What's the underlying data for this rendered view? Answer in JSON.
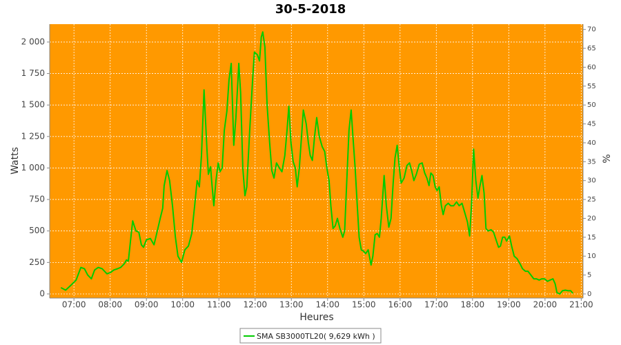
{
  "chart_data": {
    "type": "line",
    "title": "30-5-2018",
    "x_label": "Heures",
    "y_label": "Watts",
    "y2_label": "%",
    "background": "#ff9900",
    "grid": true,
    "legend": "bottom",
    "xlim": [
      6.33,
      21.05
    ],
    "xticks": [
      {
        "value": 7,
        "label": "07:00"
      },
      {
        "value": 8,
        "label": "08:00"
      },
      {
        "value": 9,
        "label": "09:00"
      },
      {
        "value": 10,
        "label": "10:00"
      },
      {
        "value": 11,
        "label": "11:00"
      },
      {
        "value": 12,
        "label": "12:00"
      },
      {
        "value": 13,
        "label": "13:00"
      },
      {
        "value": 14,
        "label": "14:00"
      },
      {
        "value": 15,
        "label": "15:00"
      },
      {
        "value": 16,
        "label": "16:00"
      },
      {
        "value": 17,
        "label": "17:00"
      },
      {
        "value": 18,
        "label": "18:00"
      },
      {
        "value": 19,
        "label": "19:00"
      },
      {
        "value": 20,
        "label": "20:00"
      },
      {
        "value": 21,
        "label": "21:00"
      }
    ],
    "ylim": [
      -33,
      2142
    ],
    "yticks": [
      0,
      250,
      500,
      750,
      {
        "value": 1000,
        "label": "1 000"
      },
      {
        "value": 1250,
        "label": "1 250"
      },
      {
        "value": 1500,
        "label": "1 500"
      },
      {
        "value": 1750,
        "label": "1 750"
      },
      {
        "value": 2000,
        "label": "2 000"
      }
    ],
    "y2lim": [
      -1.1,
      71.4
    ],
    "y2ticks": [
      0,
      5,
      10,
      15,
      20,
      25,
      30,
      35,
      40,
      45,
      50,
      55,
      60,
      65,
      70
    ],
    "x": [
      6.64,
      6.77,
      6.92,
      7.06,
      7.19,
      7.29,
      7.38,
      7.48,
      7.57,
      7.67,
      7.78,
      7.91,
      8.01,
      8.1,
      8.2,
      8.29,
      8.39,
      8.45,
      8.5,
      8.56,
      8.62,
      8.71,
      8.79,
      8.86,
      8.92,
      9.0,
      9.11,
      9.21,
      9.3,
      9.38,
      9.45,
      9.49,
      9.57,
      9.64,
      9.72,
      9.8,
      9.87,
      9.97,
      10.06,
      10.16,
      10.25,
      10.33,
      10.4,
      10.46,
      10.52,
      10.59,
      10.67,
      10.71,
      10.77,
      10.8,
      10.86,
      10.92,
      10.98,
      11.03,
      11.09,
      11.15,
      11.22,
      11.28,
      11.34,
      11.41,
      11.47,
      11.55,
      11.6,
      11.66,
      11.72,
      11.77,
      11.85,
      11.93,
      11.98,
      12.06,
      12.12,
      12.17,
      12.21,
      12.27,
      12.33,
      12.4,
      12.46,
      12.52,
      12.59,
      12.67,
      12.74,
      12.82,
      12.88,
      12.93,
      12.99,
      13.05,
      13.11,
      13.16,
      13.22,
      13.28,
      13.33,
      13.41,
      13.47,
      13.52,
      13.58,
      13.64,
      13.7,
      13.77,
      13.85,
      13.92,
      13.98,
      14.04,
      14.09,
      14.15,
      14.21,
      14.27,
      14.34,
      14.42,
      14.47,
      14.53,
      14.59,
      14.65,
      14.7,
      14.76,
      14.82,
      14.87,
      14.93,
      14.99,
      15.05,
      15.12,
      15.2,
      15.25,
      15.31,
      15.37,
      15.43,
      15.48,
      15.56,
      15.62,
      15.69,
      15.75,
      15.81,
      15.86,
      15.92,
      15.98,
      16.03,
      16.11,
      16.19,
      16.26,
      16.32,
      16.38,
      16.45,
      16.53,
      16.61,
      16.68,
      16.74,
      16.8,
      16.85,
      16.91,
      16.97,
      17.02,
      17.08,
      17.14,
      17.19,
      17.25,
      17.33,
      17.4,
      17.48,
      17.56,
      17.63,
      17.71,
      17.78,
      17.86,
      17.92,
      17.97,
      18.03,
      18.09,
      18.15,
      18.2,
      18.26,
      18.32,
      18.37,
      18.43,
      18.51,
      18.58,
      18.66,
      18.72,
      18.77,
      18.83,
      18.89,
      18.94,
      19.02,
      19.08,
      19.15,
      19.23,
      19.31,
      19.38,
      19.46,
      19.53,
      19.61,
      19.69,
      19.76,
      19.84,
      19.91,
      19.99,
      20.07,
      20.14,
      20.22,
      20.28,
      20.33,
      20.41,
      20.48,
      20.56,
      20.64,
      20.71,
      20.77
    ],
    "series": [
      {
        "name": "SMA SB3000TL20( 9,629 kWh )",
        "color": "#00cc00",
        "values": [
          50,
          30,
          70,
          110,
          210,
          200,
          150,
          120,
          190,
          210,
          200,
          160,
          170,
          190,
          200,
          210,
          240,
          270,
          260,
          420,
          580,
          500,
          490,
          390,
          370,
          430,
          440,
          390,
          500,
          600,
          680,
          860,
          980,
          900,
          700,
          450,
          300,
          250,
          350,
          380,
          480,
          700,
          900,
          850,
          1100,
          1620,
          1150,
          950,
          1010,
          900,
          700,
          900,
          1040,
          970,
          1000,
          1300,
          1450,
          1700,
          1830,
          1180,
          1400,
          1830,
          1600,
          1000,
          780,
          850,
          1300,
          1700,
          1920,
          1900,
          1850,
          2040,
          2080,
          1960,
          1500,
          1200,
          980,
          920,
          1040,
          1000,
          970,
          1100,
          1300,
          1490,
          1200,
          1050,
          1000,
          850,
          1000,
          1250,
          1460,
          1350,
          1200,
          1100,
          1060,
          1250,
          1400,
          1250,
          1170,
          1130,
          1000,
          900,
          700,
          520,
          540,
          600,
          520,
          450,
          500,
          900,
          1300,
          1460,
          1250,
          1000,
          700,
          450,
          350,
          340,
          320,
          350,
          230,
          300,
          470,
          480,
          450,
          600,
          940,
          700,
          530,
          600,
          880,
          1080,
          1180,
          1000,
          880,
          920,
          1020,
          1040,
          980,
          900,
          950,
          1030,
          1040,
          960,
          920,
          860,
          960,
          940,
          850,
          820,
          850,
          700,
          630,
          700,
          720,
          700,
          700,
          730,
          700,
          720,
          650,
          570,
          460,
          700,
          1150,
          900,
          760,
          850,
          940,
          800,
          520,
          500,
          510,
          490,
          420,
          370,
          380,
          450,
          450,
          420,
          460,
          380,
          300,
          280,
          240,
          200,
          180,
          180,
          150,
          120,
          120,
          110,
          120,
          120,
          100,
          110,
          120,
          80,
          10,
          0,
          25,
          30,
          25,
          25,
          5
        ]
      }
    ]
  }
}
